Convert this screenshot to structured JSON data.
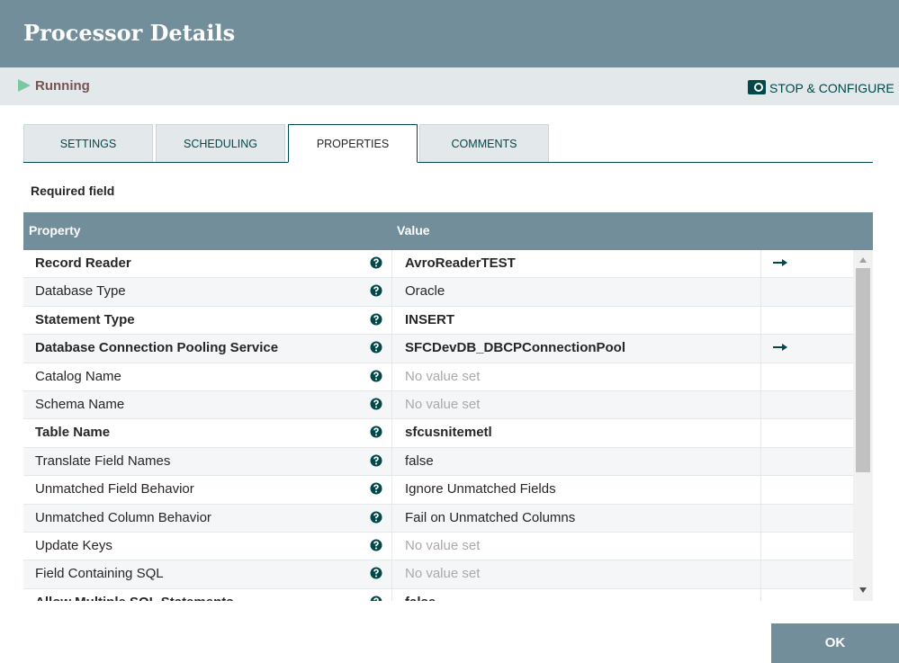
{
  "header": {
    "title": "Processor Details"
  },
  "status": {
    "label": "Running",
    "action": "STOP & CONFIGURE"
  },
  "tabs": {
    "items": [
      "SETTINGS",
      "SCHEDULING",
      "PROPERTIES",
      "COMMENTS"
    ],
    "active": 2
  },
  "required_label": "Required field",
  "table": {
    "columns": [
      "Property",
      "Value"
    ],
    "rows": [
      {
        "name": "Record Reader",
        "value": "AvroReaderTEST",
        "required": true,
        "unset": false,
        "link": true
      },
      {
        "name": "Database Type",
        "value": "Oracle",
        "required": false,
        "unset": false,
        "link": false
      },
      {
        "name": "Statement Type",
        "value": "INSERT",
        "required": true,
        "unset": false,
        "link": false
      },
      {
        "name": "Database Connection Pooling Service",
        "value": "SFCDevDB_DBCPConnectionPool",
        "required": true,
        "unset": false,
        "link": true
      },
      {
        "name": "Catalog Name",
        "value": "No value set",
        "required": false,
        "unset": true,
        "link": false
      },
      {
        "name": "Schema Name",
        "value": "No value set",
        "required": false,
        "unset": true,
        "link": false
      },
      {
        "name": "Table Name",
        "value": "sfcusnitemetl",
        "required": true,
        "unset": false,
        "link": false
      },
      {
        "name": "Translate Field Names",
        "value": "false",
        "required": false,
        "unset": false,
        "link": false
      },
      {
        "name": "Unmatched Field Behavior",
        "value": "Ignore Unmatched Fields",
        "required": false,
        "unset": false,
        "link": false
      },
      {
        "name": "Unmatched Column Behavior",
        "value": "Fail on Unmatched Columns",
        "required": false,
        "unset": false,
        "link": false
      },
      {
        "name": "Update Keys",
        "value": "No value set",
        "required": false,
        "unset": true,
        "link": false
      },
      {
        "name": "Field Containing SQL",
        "value": "No value set",
        "required": false,
        "unset": true,
        "link": false
      },
      {
        "name": "Allow Multiple SQL Statements",
        "value": "false",
        "required": true,
        "unset": false,
        "link": false
      }
    ]
  },
  "footer": {
    "ok": "OK"
  }
}
